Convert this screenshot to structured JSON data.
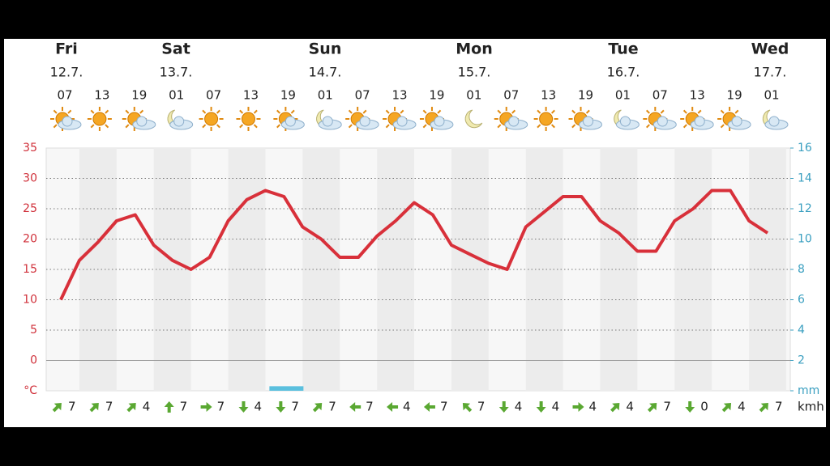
{
  "days": [
    {
      "name": "Fri",
      "date": "12.7."
    },
    {
      "name": "Sat",
      "date": "13.7."
    },
    {
      "name": "Sun",
      "date": "14.7."
    },
    {
      "name": "Mon",
      "date": "15.7."
    },
    {
      "name": "Tue",
      "date": "16.7."
    },
    {
      "name": "Wed",
      "date": "17.7."
    }
  ],
  "chart_data": {
    "type": "line",
    "categories": [
      "07",
      null,
      "13",
      null,
      "19",
      null,
      "01",
      null,
      "07",
      null,
      "13",
      null,
      "19",
      null,
      "01",
      null,
      "07",
      null,
      "13",
      null,
      "19",
      null,
      "01",
      null,
      "07",
      null,
      "13",
      null,
      "19",
      null,
      "01",
      null,
      "07",
      null,
      "13",
      null,
      "19",
      null,
      "01"
    ],
    "series": [
      {
        "color": "#d8303a",
        "values": [
          10,
          16.5,
          19.5,
          23,
          24,
          19,
          16.5,
          15,
          17,
          23,
          26.5,
          28,
          27,
          22,
          20,
          17,
          17,
          20.5,
          23,
          26,
          24,
          19,
          17.5,
          16,
          15,
          22,
          24.5,
          27,
          27,
          23,
          21,
          18,
          18,
          23,
          25,
          28,
          28,
          23,
          21
        ]
      },
      {
        "color": "#5bc0de",
        "axis": "y2",
        "values": [
          0,
          0,
          0,
          0,
          0,
          0,
          0,
          0,
          0,
          0,
          0,
          0,
          0.3,
          0,
          0,
          0,
          0,
          0,
          0,
          0,
          0,
          0,
          0,
          0,
          0,
          0,
          0,
          0,
          0,
          0,
          0,
          0,
          0,
          0,
          0,
          0,
          0,
          0,
          0
        ]
      }
    ],
    "ylim": [
      -5,
      35
    ],
    "yticks": [
      {
        "value": -5,
        "label": "°C"
      },
      0,
      5,
      10,
      15,
      20,
      25,
      30,
      35
    ],
    "y2lim": [
      0,
      16
    ],
    "y2ticks": [
      {
        "value": 0,
        "label": "mm"
      },
      2,
      4,
      6,
      8,
      10,
      12,
      14,
      16
    ],
    "grid": true
  },
  "wind": {
    "unit": "kmh",
    "values": [
      7,
      7,
      4,
      7,
      7,
      4,
      7,
      7,
      7,
      4,
      7,
      7,
      4,
      4,
      4,
      4,
      7,
      0,
      4,
      7
    ]
  }
}
